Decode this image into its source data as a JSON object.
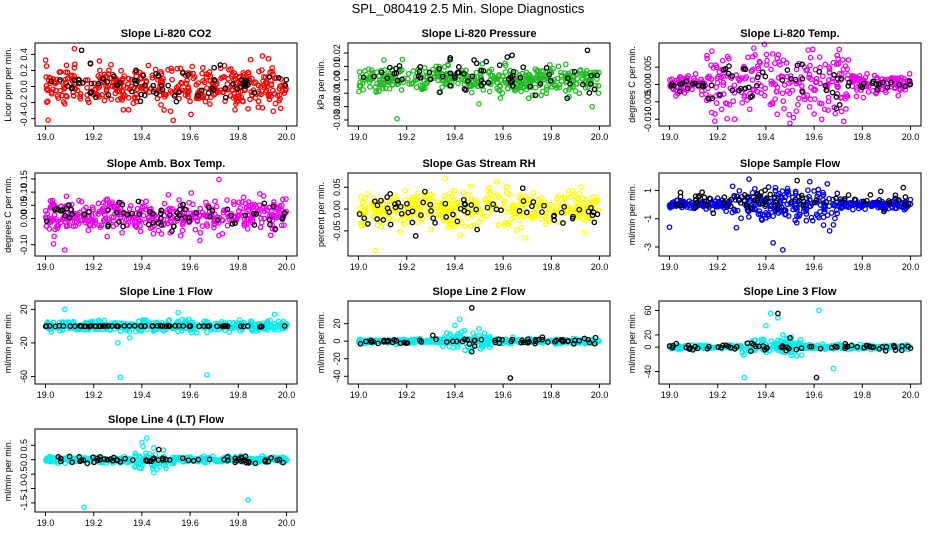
{
  "page": {
    "title": "SPL_080419  2.5 Min. Slope Diagnostics"
  },
  "chart_data": [
    {
      "type": "scatter",
      "title": "Slope Li-820 CO2",
      "ylabel": "Licor ppm per min.",
      "xlim": [
        19.0,
        20.0
      ],
      "ylim": [
        -0.45,
        0.5
      ],
      "xticks": [
        "19.0",
        "19.2",
        "19.4",
        "19.6",
        "19.8",
        "20.0"
      ],
      "yticks": [
        {
          "v": -0.4,
          "label": "-0.4"
        },
        {
          "v": -0.2,
          "label": "-0.2"
        },
        {
          "v": 0.0,
          "label": "0.0"
        },
        {
          "v": 0.2,
          "label": "0.2"
        },
        {
          "v": 0.4,
          "label": "0.4"
        }
      ],
      "series": [
        {
          "color": "#ff0000",
          "center": 0.0,
          "spread": 0.15,
          "n": 420,
          "outliers": [
            [
              19.12,
              0.47
            ],
            [
              19.53,
              -0.42
            ],
            [
              19.9,
              0.38
            ]
          ]
        },
        {
          "color": "#000000",
          "center": 0.02,
          "spread": 0.14,
          "n": 70,
          "outliers": [
            [
              19.15,
              0.45
            ]
          ]
        }
      ]
    },
    {
      "type": "scatter",
      "title": "Slope Li-820 Pressure",
      "ylabel": "kPa per min.",
      "xlim": [
        19.0,
        20.0
      ],
      "ylim": [
        -0.032,
        0.025
      ],
      "xticks": [
        "19.0",
        "19.2",
        "19.4",
        "19.6",
        "19.8",
        "20.0"
      ],
      "yticks": [
        {
          "v": -0.03,
          "label": "-0.03"
        },
        {
          "v": -0.02,
          "label": "-0.02"
        },
        {
          "v": -0.01,
          "label": "-0.01"
        },
        {
          "v": 0.0,
          "label": "0.00"
        },
        {
          "v": 0.01,
          "label": "0.01"
        },
        {
          "v": 0.02,
          "label": "0.02"
        }
      ],
      "series": [
        {
          "color": "#22bb22",
          "center": 0.0,
          "spread": 0.006,
          "n": 420,
          "outliers": [
            [
              19.16,
              -0.029
            ],
            [
              19.5,
              -0.018
            ],
            [
              19.97,
              -0.02
            ]
          ]
        },
        {
          "color": "#000000",
          "center": 0.003,
          "spread": 0.008,
          "n": 70,
          "outliers": [
            [
              19.95,
              0.022
            ],
            [
              19.38,
              0.015
            ]
          ]
        }
      ]
    },
    {
      "type": "scatter",
      "title": "Slope Li-820 Temp.",
      "ylabel": "degrees C per min.",
      "xlim": [
        19.0,
        20.0
      ],
      "ylim": [
        -0.011,
        0.011
      ],
      "xticks": [
        "19.0",
        "19.2",
        "19.4",
        "19.6",
        "19.8",
        "20.0"
      ],
      "yticks": [
        {
          "v": -0.01,
          "label": "-0.010"
        },
        {
          "v": -0.005,
          "label": "-0.005"
        },
        {
          "v": 0.0,
          "label": "0.000"
        },
        {
          "v": 0.005,
          "label": "0.005"
        }
      ],
      "series": [
        {
          "color": "#ee00ee",
          "center": 0.0,
          "spread": 0.003,
          "n": 380,
          "burst": [
            19.15,
            19.75
          ],
          "outliers": [
            [
              19.35,
              0.0105
            ],
            [
              19.27,
              -0.01
            ],
            [
              19.6,
              -0.0085
            ]
          ]
        },
        {
          "color": "#000000",
          "center": 0.0,
          "spread": 0.0015,
          "n": 70,
          "burst": [
            19.15,
            19.75
          ],
          "outliers": [
            [
              19.55,
              0.0058
            ]
          ]
        }
      ]
    },
    {
      "type": "scatter",
      "title": "Slope Amb. Box Temp.",
      "ylabel": "degrees C per min.",
      "xlim": [
        19.0,
        20.0
      ],
      "ylim": [
        -0.13,
        0.16
      ],
      "xticks": [
        "19.0",
        "19.2",
        "19.4",
        "19.6",
        "19.8",
        "20.0"
      ],
      "yticks": [
        {
          "v": -0.1,
          "label": "-0.10"
        },
        {
          "v": 0.0,
          "label": "0.00"
        },
        {
          "v": 0.05,
          "label": "0.05"
        },
        {
          "v": 0.1,
          "label": "0.10"
        },
        {
          "v": 0.15,
          "label": "0.15"
        }
      ],
      "series": [
        {
          "color": "#ee00ee",
          "center": 0.01,
          "spread": 0.04,
          "n": 420,
          "outliers": [
            [
              19.72,
              0.148
            ],
            [
              19.08,
              -0.12
            ]
          ]
        },
        {
          "color": "#000000",
          "center": 0.01,
          "spread": 0.035,
          "n": 70,
          "outliers": []
        }
      ]
    },
    {
      "type": "scatter",
      "title": "Slope Gas Stream RH",
      "ylabel": "percent per min.",
      "xlim": [
        19.0,
        20.0
      ],
      "ylim": [
        -0.1,
        0.075
      ],
      "xticks": [
        "19.0",
        "19.2",
        "19.4",
        "19.6",
        "19.8",
        "20.0"
      ],
      "yticks": [
        {
          "v": -0.05,
          "label": "-0.05"
        },
        {
          "v": 0.0,
          "label": "0.00"
        },
        {
          "v": 0.05,
          "label": "0.05"
        }
      ],
      "series": [
        {
          "color": "#ffff00",
          "center": 0.0,
          "spread": 0.025,
          "n": 420,
          "outliers": [
            [
              19.07,
              -0.095
            ],
            [
              19.36,
              0.07
            ]
          ]
        },
        {
          "color": "#000000",
          "center": -0.002,
          "spread": 0.022,
          "n": 70,
          "outliers": []
        }
      ]
    },
    {
      "type": "scatter",
      "title": "Slope Sample Flow",
      "ylabel": "ml/min per min.",
      "xlim": [
        19.0,
        20.0
      ],
      "ylim": [
        -3.4,
        2.0
      ],
      "xticks": [
        "19.0",
        "19.2",
        "19.4",
        "19.6",
        "19.8",
        "20.0"
      ],
      "yticks": [
        {
          "v": -3,
          "label": "-3"
        },
        {
          "v": -1,
          "label": "-1"
        },
        {
          "v": 1,
          "label": "1"
        }
      ],
      "series": [
        {
          "color": "#0000ee",
          "center": 0.0,
          "spread": 0.35,
          "n": 420,
          "burst": [
            19.25,
            19.7
          ],
          "outliers": [
            [
              19.47,
              -3.2
            ],
            [
              19.43,
              -2.7
            ],
            [
              19.0,
              -1.6
            ],
            [
              19.33,
              1.8
            ]
          ]
        },
        {
          "color": "#000000",
          "center": 0.3,
          "spread": 0.45,
          "n": 70,
          "outliers": [
            [
              19.53,
              1.7
            ],
            [
              19.97,
              1.2
            ]
          ]
        }
      ]
    },
    {
      "type": "scatter",
      "title": "Slope Line 1 Flow",
      "ylabel": "ml/min per min.",
      "xlim": [
        19.0,
        20.0
      ],
      "ylim": [
        -65,
        26
      ],
      "xticks": [
        "19.0",
        "19.2",
        "19.4",
        "19.6",
        "19.8",
        "20.0"
      ],
      "yticks": [
        {
          "v": -60,
          "label": "-60"
        },
        {
          "v": -20,
          "label": "-20"
        },
        {
          "v": 20,
          "label": "20"
        }
      ],
      "series": [
        {
          "color": "#00eeee",
          "center": 0.0,
          "spread": 4,
          "n": 420,
          "outliers": [
            [
              19.31,
              -61
            ],
            [
              19.67,
              -58
            ],
            [
              19.3,
              -20
            ],
            [
              19.35,
              -14
            ],
            [
              19.08,
              20
            ],
            [
              19.95,
              14
            ],
            [
              19.55,
              16
            ]
          ]
        },
        {
          "color": "#000000",
          "center": 0.0,
          "spread": 0.3,
          "n": 70,
          "outliers": []
        }
      ]
    },
    {
      "type": "scatter",
      "title": "Slope Line 2 Flow",
      "ylabel": "ml/min per min.",
      "xlim": [
        19.0,
        20.0
      ],
      "ylim": [
        -45,
        42
      ],
      "xticks": [
        "19.0",
        "19.2",
        "19.4",
        "19.6",
        "19.8",
        "20.0"
      ],
      "yticks": [
        {
          "v": -40,
          "label": "-40"
        },
        {
          "v": -20,
          "label": "-20"
        },
        {
          "v": 0,
          "label": "0"
        },
        {
          "v": 20,
          "label": "20"
        }
      ],
      "series": [
        {
          "color": "#00eeee",
          "center": 0.0,
          "spread": 2.5,
          "n": 420,
          "burst": [
            19.35,
            19.55
          ],
          "outliers": [
            [
              19.42,
              25
            ],
            [
              19.4,
              18
            ],
            [
              19.44,
              12
            ],
            [
              19.5,
              14
            ],
            [
              19.38,
              8
            ]
          ]
        },
        {
          "color": "#000000",
          "center": 0.0,
          "spread": 2.5,
          "n": 70,
          "outliers": [
            [
              19.47,
              38
            ],
            [
              19.63,
              -42
            ],
            [
              19.47,
              -12
            ]
          ]
        }
      ]
    },
    {
      "type": "scatter",
      "title": "Slope Line 3 Flow",
      "ylabel": "ml/min per min.",
      "xlim": [
        19.0,
        20.0
      ],
      "ylim": [
        -55,
        70
      ],
      "xticks": [
        "19.0",
        "19.2",
        "19.4",
        "19.6",
        "19.8",
        "20.0"
      ],
      "yticks": [
        {
          "v": -40,
          "label": "-40"
        },
        {
          "v": 0,
          "label": "0"
        },
        {
          "v": 20,
          "label": "20"
        },
        {
          "v": 60,
          "label": "60"
        }
      ],
      "series": [
        {
          "color": "#00eeee",
          "center": 0.0,
          "spread": 3.5,
          "n": 420,
          "burst": [
            19.3,
            19.55
          ],
          "outliers": [
            [
              19.42,
              55
            ],
            [
              19.45,
              48
            ],
            [
              19.4,
              35
            ],
            [
              19.62,
              60
            ],
            [
              19.31,
              -50
            ],
            [
              19.68,
              -35
            ],
            [
              19.47,
              20
            ]
          ]
        },
        {
          "color": "#000000",
          "center": 0.0,
          "spread": 3,
          "n": 70,
          "outliers": [
            [
              19.45,
              55
            ],
            [
              19.61,
              -50
            ],
            [
              19.5,
              15
            ]
          ]
        }
      ]
    },
    {
      "type": "scatter",
      "title": "Slope Line 4 (LT) Flow",
      "ylabel": "ml/min per min.",
      "xlim": [
        19.0,
        20.0
      ],
      "ylim": [
        -1.7,
        0.95
      ],
      "xticks": [
        "19.0",
        "19.2",
        "19.4",
        "19.6",
        "19.8",
        "20.0"
      ],
      "yticks": [
        {
          "v": -1.5,
          "label": "-1.5"
        },
        {
          "v": -1.0,
          "label": "-1.0"
        },
        {
          "v": -0.5,
          "label": "-0.5"
        },
        {
          "v": 0.0,
          "label": "0.0"
        },
        {
          "v": 0.5,
          "label": "0.5"
        }
      ],
      "series": [
        {
          "color": "#00eeee",
          "center": 0.0,
          "spread": 0.1,
          "n": 420,
          "burst": [
            19.35,
            19.5
          ],
          "outliers": [
            [
              19.42,
              0.75
            ],
            [
              19.4,
              0.6
            ],
            [
              19.45,
              -0.45
            ],
            [
              19.84,
              -1.4
            ],
            [
              19.16,
              -1.65
            ],
            [
              19.5,
              -0.3
            ]
          ]
        },
        {
          "color": "#000000",
          "center": 0.0,
          "spread": 0.07,
          "n": 70,
          "outliers": [
            [
              19.47,
              0.35
            ]
          ]
        }
      ]
    }
  ]
}
